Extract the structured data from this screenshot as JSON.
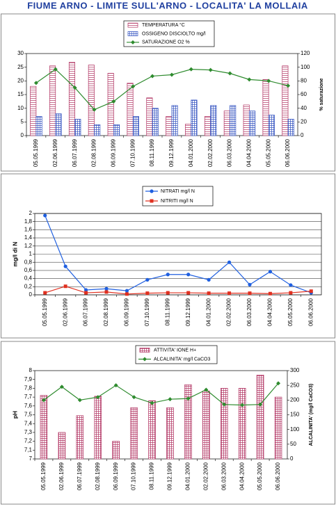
{
  "title": "FIUME ARNO - LIMITE SULL'ARNO - LOCALITA' LA MOLLAIA",
  "chart_data": [
    {
      "type": "bar",
      "categories": [
        "05.05.1999",
        "02.06.1999",
        "06.07.1999",
        "02.08.1999",
        "06.09.1999",
        "07.10.1999",
        "08.11.1999",
        "09.12.1999",
        "04.01.2000",
        "02.02.2000",
        "06.03.2000",
        "04.04.2000",
        "05.05.2000",
        "06.06.2000"
      ],
      "series": [
        {
          "name": "TEMPERATURA  °C",
          "color": "#b03060",
          "pattern": "stripes",
          "values": [
            18,
            25.5,
            26.8,
            25.8,
            22.8,
            19.2,
            13.8,
            7,
            4.2,
            7,
            9,
            11.2,
            20.5,
            25.5
          ]
        },
        {
          "name": "OSSIGENO DISCIOLTO  mg/l",
          "color": "#3050c0",
          "pattern": "grid",
          "values": [
            7,
            8,
            6,
            4,
            4,
            7,
            10,
            11,
            13,
            11,
            11,
            9,
            7.5,
            6
          ]
        },
        {
          "name": "SATURAZIONE O2  %",
          "type": "line",
          "axis": "y2",
          "color": "#2e8b2e",
          "marker": "diamond",
          "values": [
            77,
            97,
            70,
            38,
            50,
            72,
            87,
            89,
            97,
            96,
            91,
            82,
            80,
            73
          ]
        }
      ],
      "ylim": [
        0,
        30
      ],
      "yticks": [
        0,
        5,
        10,
        15,
        20,
        25,
        30
      ],
      "y2lim": [
        0,
        120
      ],
      "y2ticks": [
        0,
        20,
        40,
        60,
        80,
        100,
        120
      ],
      "y2label": "% saturazione",
      "grid": false
    },
    {
      "type": "line",
      "categories": [
        "05.05.1999",
        "02.06.1999",
        "06.07.1999",
        "02.08.1999",
        "06.09.1999",
        "07.10.1999",
        "08.11.1999",
        "09.12.1999",
        "04.01.2000",
        "02.02.2000",
        "06.03.2000",
        "04.04.2000",
        "05.05.2000",
        "06.06.2000"
      ],
      "series": [
        {
          "name": "NITRATI  mg/l N",
          "color": "#1f5fe0",
          "marker": "circle",
          "values": [
            1.95,
            0.7,
            0.12,
            0.15,
            0.1,
            0.37,
            0.5,
            0.5,
            0.37,
            0.8,
            0.25,
            0.57,
            0.24,
            0.05
          ]
        },
        {
          "name": "NITRITI  mg/l N",
          "color": "#e03020",
          "marker": "square",
          "values": [
            0.05,
            0.21,
            0.05,
            0.07,
            0.02,
            0.04,
            0.05,
            0.05,
            0.04,
            0.04,
            0.04,
            0.03,
            0.05,
            0.09
          ]
        }
      ],
      "ylim": [
        0,
        2
      ],
      "yticks": [
        0,
        {
          "value": 0.2,
          "label": "0,2"
        },
        {
          "value": 0.4,
          "label": "0,4"
        },
        {
          "value": 0.6,
          "label": "0,6"
        },
        {
          "value": 0.8,
          "label": "0,8"
        },
        1,
        {
          "value": 1.2,
          "label": "1,2"
        },
        {
          "value": 1.4,
          "label": "1,4"
        },
        {
          "value": 1.6,
          "label": "1,6"
        },
        {
          "value": 1.8,
          "label": "1,8"
        },
        2
      ],
      "ylabel": "mg/l di N",
      "grid": true
    },
    {
      "type": "bar",
      "categories": [
        "05.05.1999",
        "02.06.1999",
        "06.07.1999",
        "02.08.1999",
        "06.09.1999",
        "07.10.1999",
        "08.11.1999",
        "09.12.1999",
        "04.01.2000",
        "02.02.2000",
        "06.03.2000",
        "04.04.2000",
        "05.05.2000",
        "06.06.2000"
      ],
      "series": [
        {
          "name": "ATTIVITA' IONE H+",
          "color": "#b03060",
          "pattern": "grid",
          "values": [
            7.72,
            7.3,
            7.49,
            7.71,
            7.2,
            7.58,
            7.66,
            7.58,
            7.84,
            7.77,
            7.8,
            7.8,
            7.95,
            7.7
          ]
        },
        {
          "name": "ALCALINITA' mg/l CaCO3",
          "type": "line",
          "axis": "y2",
          "color": "#2e8b2e",
          "marker": "diamond",
          "values": [
            200,
            245,
            200,
            210,
            250,
            210,
            190,
            203,
            205,
            235,
            185,
            183,
            185,
            257
          ]
        }
      ],
      "ylim": [
        7,
        8
      ],
      "yticks": [
        7,
        {
          "value": 7.1,
          "label": "7,1"
        },
        {
          "value": 7.2,
          "label": "7,2"
        },
        {
          "value": 7.3,
          "label": "7,3"
        },
        {
          "value": 7.4,
          "label": "7,4"
        },
        {
          "value": 7.5,
          "label": "7,5"
        },
        {
          "value": 7.6,
          "label": "7,6"
        },
        {
          "value": 7.7,
          "label": "7,7"
        },
        {
          "value": 7.8,
          "label": "7,8"
        },
        {
          "value": 7.9,
          "label": "7,9"
        },
        8
      ],
      "y2lim": [
        0,
        300
      ],
      "y2ticks": [
        0,
        50,
        100,
        150,
        200,
        250,
        300
      ],
      "ylabel": "pH",
      "y2label": "ALCALINITA' (mg/l CaCO3)",
      "grid": false
    }
  ]
}
